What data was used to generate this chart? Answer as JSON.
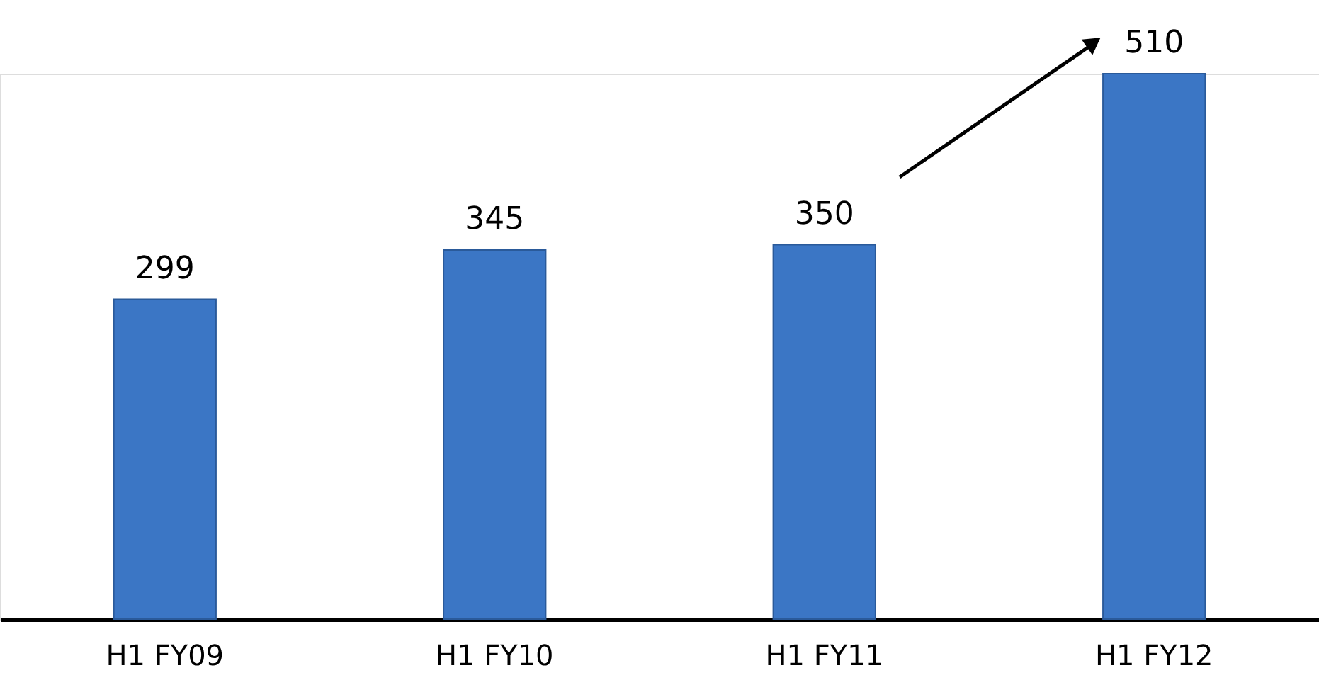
{
  "chart_data": {
    "type": "bar",
    "categories": [
      "H1 FY09",
      "H1 FY10",
      "H1 FY11",
      "H1 FY12"
    ],
    "values": [
      299,
      345,
      350,
      510
    ],
    "color": "#3b76c5",
    "data_labels": true
  }
}
